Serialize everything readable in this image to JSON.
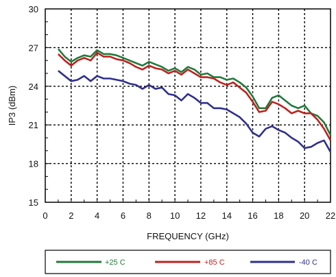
{
  "chart_data": {
    "type": "line",
    "xlabel": "FREQUENCY (GHz)",
    "ylabel": "IP3 (dBm)",
    "xlim": [
      0,
      22
    ],
    "ylim": [
      15,
      30
    ],
    "xticks": [
      0,
      2,
      4,
      6,
      8,
      10,
      12,
      14,
      16,
      18,
      20,
      22
    ],
    "yticks": [
      15,
      18,
      21,
      24,
      27,
      30
    ],
    "grid": true,
    "legend_position": "bottom",
    "series": [
      {
        "name": "+25 C",
        "color": "#1f7a3a",
        "x": [
          1,
          1.5,
          2,
          2.5,
          3,
          3.5,
          4,
          4.5,
          5,
          5.5,
          6,
          6.5,
          7,
          7.5,
          8,
          8.5,
          9,
          9.5,
          10,
          10.5,
          11,
          11.5,
          12,
          12.5,
          13,
          13.5,
          14,
          14.5,
          15,
          15.5,
          16,
          16.5,
          17,
          17.5,
          18,
          18.5,
          19,
          19.5,
          20,
          20.5,
          21,
          21.5,
          22
        ],
        "values": [
          26.9,
          26.3,
          25.9,
          26.2,
          26.4,
          26.3,
          26.8,
          26.5,
          26.5,
          26.4,
          26.2,
          26.0,
          25.8,
          25.6,
          25.9,
          25.7,
          25.5,
          25.2,
          25.4,
          25.1,
          25.5,
          25.3,
          24.9,
          25.0,
          24.7,
          24.7,
          24.5,
          24.6,
          24.3,
          23.9,
          23.2,
          22.3,
          22.3,
          23.1,
          23.3,
          22.9,
          22.5,
          22.3,
          22.5,
          21.9,
          21.7,
          21.2,
          20.2
        ]
      },
      {
        "name": "+85 C",
        "color": "#c0201e",
        "x": [
          1,
          1.5,
          2,
          2.5,
          3,
          3.5,
          4,
          4.5,
          5,
          5.5,
          6,
          6.5,
          7,
          7.5,
          8,
          8.5,
          9,
          9.5,
          10,
          10.5,
          11,
          11.5,
          12,
          12.5,
          13,
          13.5,
          14,
          14.5,
          15,
          15.5,
          16,
          16.5,
          17,
          17.5,
          18,
          18.5,
          19,
          19.5,
          20,
          20.5,
          21,
          21.5,
          22
        ],
        "values": [
          26.5,
          26.0,
          25.6,
          26.0,
          26.2,
          26.0,
          26.6,
          26.3,
          26.3,
          26.1,
          26.0,
          25.8,
          25.5,
          25.3,
          25.6,
          25.4,
          25.3,
          25.0,
          25.2,
          24.9,
          25.3,
          25.0,
          24.7,
          24.7,
          24.6,
          24.3,
          24.1,
          24.3,
          23.9,
          23.5,
          22.8,
          22.0,
          22.1,
          22.8,
          22.6,
          22.3,
          21.9,
          22.1,
          21.9,
          21.9,
          21.4,
          20.7,
          19.8
        ]
      },
      {
        "name": "-40 C",
        "color": "#2e2f8c",
        "x": [
          1,
          1.5,
          2,
          2.5,
          3,
          3.5,
          4,
          4.5,
          5,
          5.5,
          6,
          6.5,
          7,
          7.5,
          8,
          8.5,
          9,
          9.5,
          10,
          10.5,
          11,
          11.5,
          12,
          12.5,
          13,
          13.5,
          14,
          14.5,
          15,
          15.5,
          16,
          16.5,
          17,
          17.5,
          18,
          18.5,
          19,
          19.5,
          20,
          20.5,
          21,
          21.5,
          22
        ],
        "values": [
          25.2,
          24.8,
          24.4,
          24.5,
          24.8,
          24.4,
          24.8,
          24.6,
          24.6,
          24.5,
          24.4,
          24.2,
          24.1,
          23.8,
          24.1,
          23.8,
          23.9,
          23.4,
          23.3,
          22.9,
          23.4,
          23.1,
          22.7,
          22.7,
          22.3,
          22.3,
          22.2,
          21.9,
          21.6,
          21.1,
          20.4,
          20.1,
          20.7,
          20.9,
          20.6,
          20.4,
          20.0,
          19.7,
          19.2,
          19.3,
          19.6,
          19.8,
          18.9
        ]
      }
    ]
  }
}
